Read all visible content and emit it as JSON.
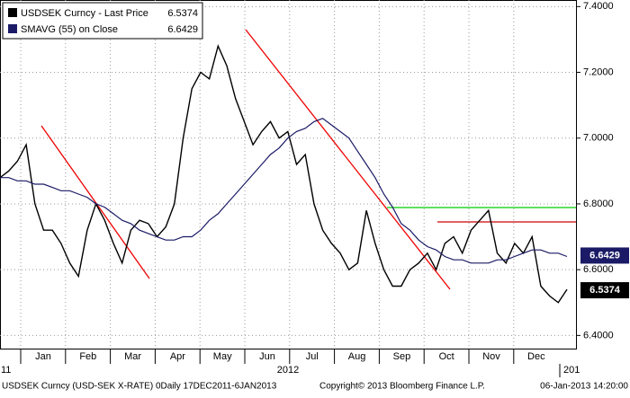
{
  "chart_data": {
    "type": "line",
    "series": [
      {
        "name": "USDSEK Curncy - Last Price",
        "color": "#000000",
        "last_value": 6.5374,
        "values": [
          6.88,
          6.9,
          6.93,
          6.98,
          6.8,
          6.72,
          6.72,
          6.68,
          6.62,
          6.58,
          6.72,
          6.8,
          6.75,
          6.68,
          6.62,
          6.72,
          6.75,
          6.74,
          6.7,
          6.73,
          6.8,
          7.0,
          7.15,
          7.2,
          7.18,
          7.28,
          7.22,
          7.12,
          7.05,
          6.98,
          7.02,
          7.05,
          7.0,
          7.02,
          6.92,
          6.95,
          6.8,
          6.72,
          6.68,
          6.65,
          6.6,
          6.62,
          6.78,
          6.68,
          6.6,
          6.55,
          6.55,
          6.6,
          6.62,
          6.65,
          6.6,
          6.68,
          6.7,
          6.65,
          6.72,
          6.75,
          6.78,
          6.65,
          6.62,
          6.68,
          6.65,
          6.7,
          6.55,
          6.52,
          6.5,
          6.54
        ]
      },
      {
        "name": "SMAVG (55) on Close",
        "color": "#1a1a66",
        "last_value": 6.6429,
        "values": [
          6.88,
          6.88,
          6.87,
          6.87,
          6.86,
          6.86,
          6.85,
          6.84,
          6.84,
          6.83,
          6.82,
          6.8,
          6.79,
          6.77,
          6.75,
          6.74,
          6.72,
          6.71,
          6.7,
          6.69,
          6.69,
          6.7,
          6.7,
          6.72,
          6.75,
          6.77,
          6.8,
          6.83,
          6.86,
          6.89,
          6.92,
          6.95,
          6.97,
          7.0,
          7.02,
          7.03,
          7.05,
          7.06,
          7.04,
          7.02,
          7.0,
          6.96,
          6.92,
          6.88,
          6.83,
          6.79,
          6.74,
          6.72,
          6.69,
          6.67,
          6.66,
          6.64,
          6.63,
          6.63,
          6.62,
          6.62,
          6.62,
          6.63,
          6.63,
          6.64,
          6.65,
          6.66,
          6.66,
          6.65,
          6.65,
          6.64
        ]
      }
    ],
    "months": [
      "Jan",
      "Feb",
      "Mar",
      "Apr",
      "May",
      "Jun",
      "Jul",
      "Aug",
      "Sep",
      "Oct",
      "Nov",
      "Dec"
    ],
    "years": [
      "11",
      "2012",
      "201"
    ],
    "ylim": [
      6.36,
      7.42
    ],
    "yticks": [
      {
        "value": 6.4,
        "label": "6.4000"
      },
      {
        "value": 6.6,
        "label": "6.6000"
      },
      {
        "value": 6.8,
        "label": "6.8000"
      },
      {
        "value": 7.0,
        "label": "7.0000"
      },
      {
        "value": 7.2,
        "label": "7.2000"
      },
      {
        "value": 7.4,
        "label": "7.4000"
      }
    ],
    "grid": true,
    "footer": {
      "left": "USDSEK Curncy (USD-SEK X-RATE) 0Daily 17DEC2011-6JAN2013",
      "center": "Copyright© 2013 Bloomberg Finance L.P.",
      "right": "06-Jan-2013 14:20:00"
    }
  }
}
